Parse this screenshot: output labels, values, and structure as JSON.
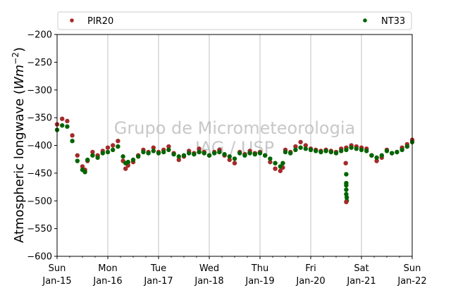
{
  "chart_data": {
    "type": "scatter",
    "ylabel_main": "Atmospheric longwave (",
    "ylabel_unit_base": "Wm",
    "ylabel_unit_exp": "−2",
    "ylabel_close": ")",
    "ylim": [
      -600,
      -200
    ],
    "yticks": [
      -200,
      -250,
      -300,
      -350,
      -400,
      -450,
      -500,
      -550,
      -600
    ],
    "xlim": [
      "2017-01-15",
      "2017-01-22"
    ],
    "xticks": [
      {
        "day": "Sun",
        "date": "Jan-15"
      },
      {
        "day": "Mon",
        "date": "Jan-16"
      },
      {
        "day": "Tue",
        "date": "Jan-17"
      },
      {
        "day": "Wed",
        "date": "Jan-18"
      },
      {
        "day": "Thu",
        "date": "Jan-19"
      },
      {
        "day": "Fri",
        "date": "Jan-20"
      },
      {
        "day": "Sat",
        "date": "Jan-21"
      },
      {
        "day": "Sun",
        "date": "Jan-22"
      }
    ],
    "grid": "vertical",
    "legend_placement": "top",
    "watermark": [
      "Grupo de Micrometeorologia",
      "IAG / USP"
    ],
    "series": [
      {
        "name": "PIR20",
        "color": "#a52a2a",
        "x": [
          0.0,
          0.1,
          0.2,
          0.3,
          0.4,
          0.5,
          0.55,
          0.6,
          0.7,
          0.8,
          0.9,
          1.0,
          1.1,
          1.2,
          1.3,
          1.35,
          1.4,
          1.5,
          1.6,
          1.7,
          1.8,
          1.9,
          2.0,
          2.1,
          2.2,
          2.3,
          2.4,
          2.5,
          2.6,
          2.7,
          2.8,
          2.9,
          3.0,
          3.1,
          3.2,
          3.3,
          3.4,
          3.5,
          3.6,
          3.7,
          3.8,
          3.9,
          4.0,
          4.1,
          4.2,
          4.3,
          4.4,
          4.45,
          4.5,
          4.6,
          4.7,
          4.8,
          4.9,
          5.0,
          5.1,
          5.2,
          5.3,
          5.4,
          5.5,
          5.6,
          5.7,
          5.8,
          5.9,
          6.0,
          6.1,
          6.2,
          6.3,
          6.4,
          6.5,
          6.6,
          6.7,
          6.8,
          6.9,
          7.0
        ],
        "y": [
          -362,
          -352,
          -356,
          -382,
          -418,
          -438,
          -444,
          -428,
          -412,
          -418,
          -410,
          -404,
          -400,
          -392,
          -428,
          -442,
          -436,
          -430,
          -418,
          -408,
          -412,
          -404,
          -412,
          -408,
          -402,
          -414,
          -426,
          -420,
          -410,
          -414,
          -406,
          -412,
          -418,
          -412,
          -408,
          -418,
          -426,
          -432,
          -412,
          -416,
          -410,
          -414,
          -412,
          -418,
          -430,
          -442,
          -446,
          -440,
          -408,
          -412,
          -402,
          -394,
          -400,
          -406,
          -408,
          -410,
          -408,
          -410,
          -412,
          -406,
          -404,
          -400,
          -402,
          -404,
          -406,
          -418,
          -428,
          -422,
          -408,
          -414,
          -412,
          -404,
          -398,
          -390
        ]
      },
      {
        "name": "NT33",
        "color": "#006400",
        "x": [
          0.0,
          0.1,
          0.2,
          0.3,
          0.4,
          0.5,
          0.55,
          0.6,
          0.7,
          0.8,
          0.9,
          1.0,
          1.1,
          1.2,
          1.3,
          1.35,
          1.4,
          1.5,
          1.6,
          1.7,
          1.8,
          1.9,
          2.0,
          2.1,
          2.2,
          2.3,
          2.4,
          2.5,
          2.6,
          2.7,
          2.8,
          2.9,
          3.0,
          3.1,
          3.2,
          3.3,
          3.4,
          3.5,
          3.6,
          3.7,
          3.8,
          3.9,
          4.0,
          4.1,
          4.2,
          4.3,
          4.4,
          4.45,
          4.5,
          4.6,
          4.7,
          4.8,
          4.9,
          5.0,
          5.1,
          5.2,
          5.3,
          5.4,
          5.5,
          5.6,
          5.7,
          5.8,
          5.9,
          6.0,
          6.1,
          6.2,
          6.3,
          6.4,
          6.5,
          6.6,
          6.7,
          6.8,
          6.9,
          7.0
        ],
        "y": [
          -372,
          -364,
          -366,
          -392,
          -428,
          -444,
          -448,
          -426,
          -418,
          -422,
          -414,
          -412,
          -408,
          -402,
          -420,
          -432,
          -430,
          -426,
          -420,
          -412,
          -414,
          -410,
          -414,
          -412,
          -408,
          -416,
          -420,
          -418,
          -414,
          -416,
          -412,
          -414,
          -418,
          -414,
          -412,
          -416,
          -420,
          -424,
          -414,
          -418,
          -414,
          -416,
          -414,
          -418,
          -424,
          -432,
          -438,
          -432,
          -412,
          -414,
          -408,
          -404,
          -406,
          -408,
          -410,
          -412,
          -410,
          -412,
          -414,
          -410,
          -408,
          -404,
          -406,
          -408,
          -410,
          -418,
          -422,
          -418,
          -410,
          -414,
          -412,
          -408,
          -402,
          -394
        ]
      },
      {
        "name": "",
        "color": "#006400",
        "x": [
          5.7,
          5.7,
          5.7,
          5.7,
          5.7,
          5.71,
          5.71
        ],
        "y": [
          -452,
          -468,
          -472,
          -480,
          -488,
          -494,
          -500
        ]
      },
      {
        "name": "",
        "color": "#a52a2a",
        "x": [
          5.69,
          5.7
        ],
        "y": [
          -432,
          -502
        ]
      }
    ]
  }
}
